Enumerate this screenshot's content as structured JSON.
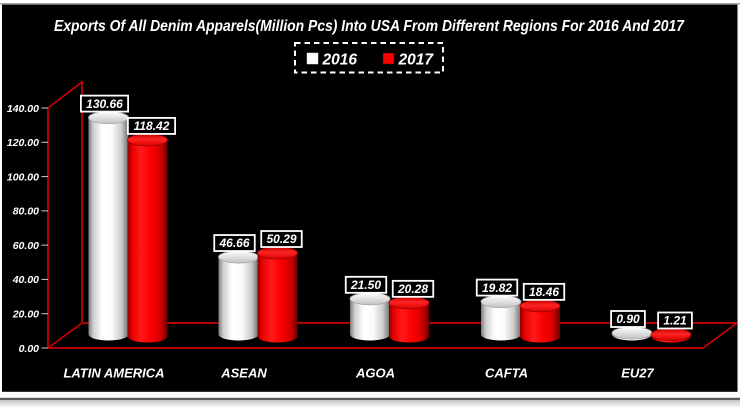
{
  "window": {
    "background": "#ffffff",
    "chart_background": "#000000",
    "top_rule_color": "#8f8f8f",
    "bottom_rule_color": "#5a5a5a"
  },
  "chart_data": {
    "type": "bar",
    "variant": "3d-cylinder",
    "title": "Exports Of All Denim Apparels(Million Pcs) Into USA From Different Regions For 2016 And 2017",
    "categories": [
      "LATIN AMERICA",
      "ASEAN",
      "AGOA",
      "CAFTA",
      "EU27"
    ],
    "series": [
      {
        "name": "2016",
        "color": "#ffffff",
        "values": [
          130.66,
          46.66,
          21.5,
          19.82,
          0.9
        ],
        "labels": [
          "130.66",
          "46.66",
          "21.50",
          "19.82",
          "0.90"
        ]
      },
      {
        "name": "2017",
        "color": "#ff0000",
        "values": [
          118.42,
          50.29,
          20.28,
          18.46,
          1.21
        ],
        "labels": [
          "118.42",
          "50.29",
          "20.28",
          "18.46",
          "1.21"
        ]
      }
    ],
    "y_axis": {
      "min": 0,
      "max": 140,
      "tick_step": 20,
      "tick_labels": [
        "0.00",
        "20.00",
        "40.00",
        "60.00",
        "80.00",
        "100.00",
        "120.00",
        "140.00"
      ]
    },
    "legend": {
      "position": "top",
      "border_style": "dashed",
      "items": [
        {
          "label": "2016",
          "color": "#ffffff"
        },
        {
          "label": "2017",
          "color": "#ff0000"
        }
      ]
    },
    "axis_color": "#cc0000",
    "tick_mark_color": "#cccccc",
    "text_color": "#ffffff",
    "data_label_box": {
      "fill": "#000000",
      "border": "#ffffff"
    },
    "gridlines": false
  }
}
